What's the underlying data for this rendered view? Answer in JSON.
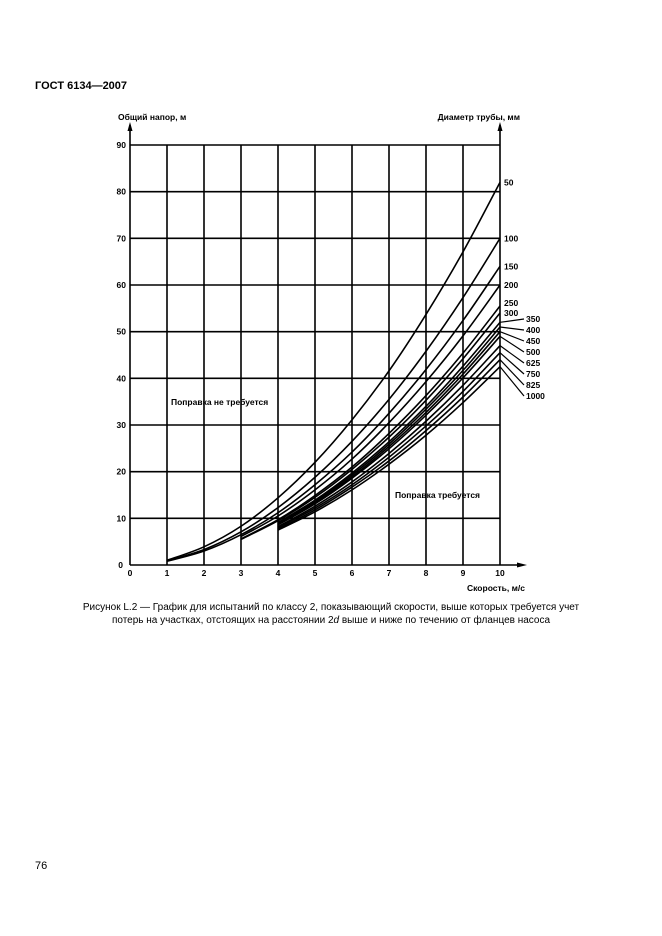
{
  "header": {
    "doc_id": "ГОСТ 6134—2007"
  },
  "caption": {
    "line1": "Рисунок L.2 — График для испытаний по классу 2, показывающий скорости, выше которых требуется учет",
    "line2_a": "потерь на участках, отстоящих на расстоянии 2",
    "line2_italic": "d",
    "line2_b": " выше и ниже по течению от фланцев насоса"
  },
  "page_number": "76",
  "chart_data": {
    "type": "line",
    "ylabel": "Общий напор, м",
    "y2label": "Диаметр трубы, мм",
    "xlabel": "Скорость, м/с",
    "xlim": [
      0,
      10
    ],
    "ylim": [
      0,
      90
    ],
    "x_ticks": [
      "0",
      "1",
      "2",
      "3",
      "4",
      "5",
      "6",
      "7",
      "8",
      "9",
      "10"
    ],
    "y_ticks": [
      "10",
      "20",
      "30",
      "40",
      "50",
      "60",
      "70",
      "80",
      "90"
    ],
    "grid": true,
    "line_color": "#000000",
    "annotations": {
      "no_correction": "Поправка не требуется",
      "correction": "Поправка требуется"
    },
    "series": [
      {
        "name": "50",
        "x": [
          1,
          2,
          3,
          4,
          5,
          6,
          7,
          8,
          9,
          10
        ],
        "y": [
          1.0,
          3.9,
          8.3,
          14.4,
          22.0,
          31.1,
          41.6,
          53.7,
          67.1,
          82
        ]
      },
      {
        "name": "100",
        "x": [
          1,
          2,
          3,
          4,
          5,
          6,
          7,
          8,
          9,
          10
        ],
        "y": [
          0.9,
          3.3,
          7.1,
          12.3,
          18.8,
          26.5,
          35.5,
          45.8,
          57.3,
          70
        ]
      },
      {
        "name": "150",
        "x": [
          1,
          2,
          3,
          4,
          5,
          6,
          7,
          8,
          9,
          10
        ],
        "y": [
          0.8,
          3.0,
          6.5,
          11.2,
          17.2,
          24.2,
          32.5,
          41.9,
          52.4,
          64
        ]
      },
      {
        "name": "200",
        "x": [
          3,
          4,
          5,
          6,
          7,
          8,
          9,
          10
        ],
        "y": [
          6.1,
          10.5,
          16.1,
          22.7,
          30.5,
          39.3,
          49.1,
          60
        ]
      },
      {
        "name": "250",
        "x": [
          3,
          4,
          5,
          6,
          7,
          8,
          9,
          10
        ],
        "y": [
          5.6,
          9.7,
          14.9,
          21.0,
          28.2,
          36.3,
          45.4,
          55.5
        ]
      },
      {
        "name": "300",
        "x": [
          3,
          4,
          5,
          6,
          7,
          8,
          9,
          10
        ],
        "y": [
          5.5,
          9.5,
          14.5,
          20.5,
          27.4,
          35.3,
          44.2,
          54
        ]
      },
      {
        "name": "350",
        "x": [
          4,
          5,
          6,
          7,
          8,
          9,
          10
        ],
        "y": [
          9.1,
          13.9,
          19.7,
          26.4,
          34.0,
          42.6,
          52
        ]
      },
      {
        "name": "400",
        "x": [
          4,
          5,
          6,
          7,
          8,
          9,
          10
        ],
        "y": [
          8.9,
          13.7,
          19.3,
          25.9,
          33.4,
          41.7,
          51
        ]
      },
      {
        "name": "450",
        "x": [
          4,
          5,
          6,
          7,
          8,
          9,
          10
        ],
        "y": [
          8.8,
          13.4,
          18.9,
          25.4,
          32.7,
          40.9,
          50
        ]
      },
      {
        "name": "500",
        "x": [
          4,
          5,
          6,
          7,
          8,
          9,
          10
        ],
        "y": [
          8.6,
          13.1,
          18.6,
          24.9,
          32.1,
          40.1,
          49
        ]
      },
      {
        "name": "625",
        "x": [
          4,
          5,
          6,
          7,
          8,
          9,
          10
        ],
        "y": [
          8.2,
          12.6,
          17.8,
          23.9,
          30.8,
          38.5,
          47
        ]
      },
      {
        "name": "750",
        "x": [
          4,
          5,
          6,
          7,
          8,
          9,
          10
        ],
        "y": [
          8.0,
          12.2,
          17.2,
          23.1,
          29.8,
          37.2,
          45.5
        ]
      },
      {
        "name": "825",
        "x": [
          4,
          5,
          6,
          7,
          8,
          9,
          10
        ],
        "y": [
          7.7,
          11.8,
          16.7,
          22.3,
          28.8,
          36.0,
          44
        ]
      },
      {
        "name": "1000",
        "x": [
          4,
          5,
          6,
          7,
          8,
          9,
          10
        ],
        "y": [
          7.5,
          11.4,
          16.1,
          21.6,
          27.8,
          34.8,
          42.5
        ]
      }
    ]
  }
}
